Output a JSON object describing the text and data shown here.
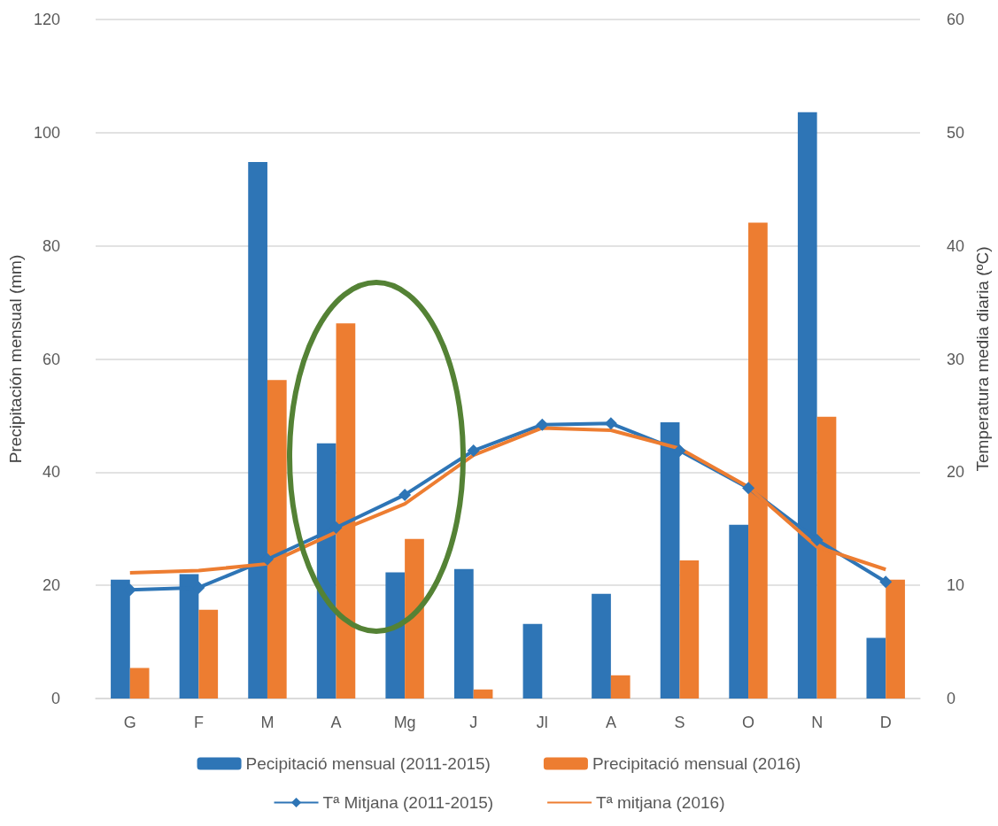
{
  "chart_data": {
    "type": "bar",
    "ylabel": "Precipitación mensual (mm)",
    "y2label": "Temperatura media diaria (ºC)",
    "categories": [
      "G",
      "F",
      "M",
      "A",
      "Mg",
      "J",
      "Jl",
      "A",
      "S",
      "O",
      "N",
      "D"
    ],
    "series": [
      {
        "name": "Pecipitació mensual (2011-2015)",
        "color": "#2e75b6",
        "values": [
          21.0,
          22.0,
          94.8,
          45.1,
          22.3,
          22.9,
          13.2,
          18.5,
          48.8,
          30.7,
          103.6,
          10.7
        ]
      },
      {
        "name": "Precipitació mensual (2016)",
        "color": "#ed7d31",
        "values": [
          5.4,
          15.7,
          56.3,
          66.3,
          28.2,
          1.6,
          0,
          4.1,
          24.4,
          84.1,
          49.8,
          21.0
        ]
      },
      {
        "name": "Tª Mitjana (2011-2015)",
        "type": "line",
        "axis": "y2",
        "marker": "diamond",
        "color": "#2e75b6",
        "values": [
          9.6,
          9.8,
          12.3,
          15.1,
          18.0,
          21.9,
          24.2,
          24.3,
          21.9,
          18.6,
          14.0,
          10.3
        ]
      },
      {
        "name": "Tª mitjana (2016)",
        "type": "line",
        "axis": "y2",
        "marker": "none",
        "color": "#ed7d31",
        "values": [
          11.1,
          11.3,
          11.9,
          14.7,
          17.2,
          21.5,
          23.9,
          23.7,
          22.1,
          18.7,
          13.4,
          11.4
        ]
      }
    ],
    "ylim": [
      0,
      120
    ],
    "yticks": [
      0,
      20,
      40,
      60,
      80,
      100,
      120
    ],
    "y2lim": [
      0,
      60
    ],
    "y2ticks": [
      0,
      10,
      20,
      30,
      40,
      50,
      60
    ],
    "grid": "y",
    "legend": "bottom"
  }
}
